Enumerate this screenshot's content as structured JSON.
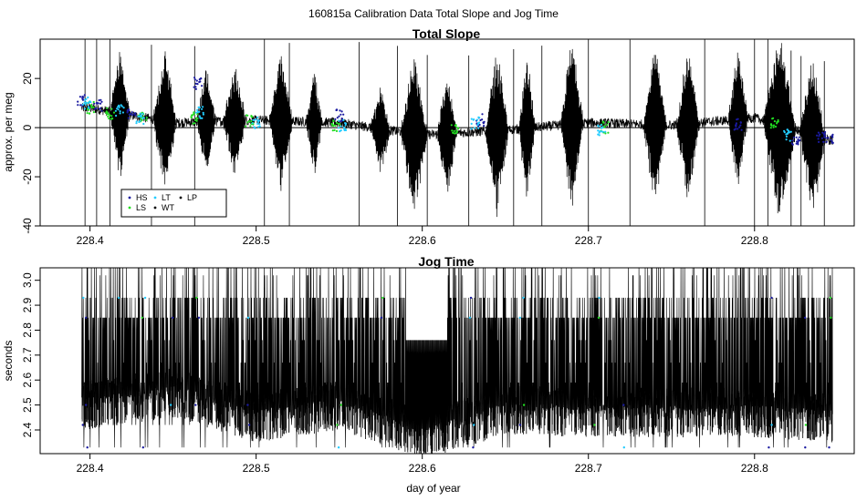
{
  "figure": {
    "title": "160815a   Calibration Data Total Slope and Jog Time",
    "xlabel": "day of year"
  },
  "colors": {
    "HS": "#1a1aa0",
    "LS": "#22dd22",
    "LT": "#22ccff",
    "WT": "#000000",
    "LP": "#000000",
    "line": "#000000"
  },
  "chart_data": [
    {
      "type": "line",
      "title": "Total Slope",
      "xlabel": "",
      "ylabel": "approx. per meg",
      "xlim": [
        228.37,
        228.86
      ],
      "ylim": [
        -40,
        36
      ],
      "xticks": [
        228.4,
        228.5,
        228.6,
        228.7,
        228.8
      ],
      "xtick_labels": [
        "228.4",
        "228.5",
        "228.6",
        "228.7",
        "228.8"
      ],
      "yticks": [
        -40,
        -20,
        0,
        20
      ],
      "ytick_labels": [
        "-40",
        "-20",
        "0",
        "20"
      ],
      "hline": 0,
      "legend": {
        "placement": "bottom-left",
        "entries": [
          "HS",
          "LT",
          "LP",
          "LS",
          "WT"
        ]
      },
      "series": [
        {
          "name": "HS",
          "x": [
            228.395,
            228.405,
            228.425,
            228.465,
            228.55,
            228.635,
            228.79,
            228.825,
            228.84,
            228.845
          ],
          "y": [
            11,
            9,
            6,
            18,
            5,
            3,
            1,
            -5,
            -4,
            -4
          ]
        },
        {
          "name": "LS",
          "x": [
            228.4,
            228.412,
            228.432,
            228.463,
            228.496,
            228.548,
            228.62,
            228.71,
            228.812
          ],
          "y": [
            8,
            6,
            5,
            4,
            3,
            1,
            -1,
            0,
            2
          ]
        },
        {
          "name": "LT",
          "x": [
            228.398,
            228.418,
            228.43,
            228.466,
            228.5,
            228.552,
            228.632,
            228.708,
            228.82
          ],
          "y": [
            10,
            7,
            4,
            6,
            2,
            1,
            2,
            -1,
            -3
          ]
        },
        {
          "name": "WT",
          "x": [
            228.4,
            228.45,
            228.5,
            228.55,
            228.6,
            228.65,
            228.7,
            228.75,
            228.8,
            228.845
          ],
          "y": [
            8,
            2,
            3,
            2,
            -3,
            -1,
            2,
            1,
            4,
            -5
          ]
        }
      ]
    },
    {
      "type": "line",
      "title": "Jog Time",
      "xlabel": "day of year",
      "ylabel": "seconds",
      "xlim": [
        228.37,
        228.86
      ],
      "ylim": [
        2.305,
        3.05
      ],
      "xticks": [
        228.4,
        228.5,
        228.6,
        228.7,
        228.8
      ],
      "xtick_labels": [
        "228.4",
        "228.5",
        "228.6",
        "228.7",
        "228.8"
      ],
      "yticks": [
        2.4,
        2.5,
        2.6,
        2.7,
        2.8,
        2.9,
        3.0
      ],
      "ytick_labels": [
        "2.4",
        "2.5",
        "2.6",
        "2.7",
        "2.8",
        "2.9",
        "3.0"
      ],
      "series": [
        {
          "name": "",
          "x": [
            228.4,
            228.45,
            228.5,
            228.55,
            228.6,
            228.65,
            228.7,
            228.75,
            228.8,
            228.845
          ],
          "y": [
            2.5,
            2.55,
            2.45,
            2.5,
            2.38,
            2.48,
            2.47,
            2.47,
            2.47,
            2.45
          ]
        }
      ]
    }
  ]
}
